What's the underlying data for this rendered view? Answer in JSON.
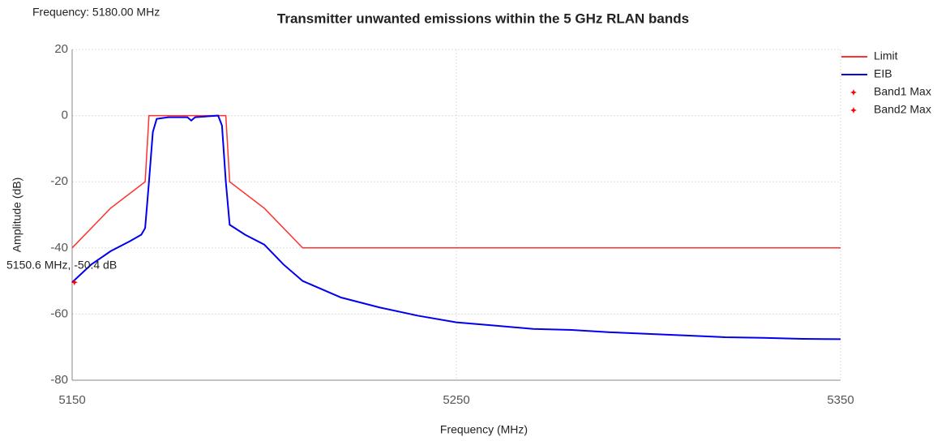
{
  "chart_data": {
    "type": "line",
    "title": "Transmitter unwanted emissions within the 5 GHz RLAN bands",
    "subtitle": "Frequency: 5180.00 MHz",
    "x_label": "Frequency (MHz)",
    "y_label": "Amplitude (dB)",
    "annotation": "5150.6 MHz, -50.4 dB",
    "xlim": [
      5150,
      5350
    ],
    "xticks": [
      5150,
      5250,
      5350
    ],
    "ylim": [
      -80,
      20
    ],
    "yticks": [
      20,
      0,
      -20,
      -40,
      -60,
      -80
    ],
    "grid": true,
    "legend": "right",
    "series": [
      {
        "name": "Limit",
        "color": "#ff3030",
        "type": "line",
        "x": [
          5150,
          5160,
          5169,
          5170,
          5190,
          5191,
          5200,
          5210,
          5350
        ],
        "values": [
          -40,
          -28,
          -20,
          0,
          0,
          -20,
          -28,
          -40,
          -40
        ]
      },
      {
        "name": "EIB",
        "color": "#0000ee",
        "type": "line",
        "x": [
          5150,
          5155,
          5160,
          5165,
          5168,
          5169,
          5170,
          5171,
          5172,
          5175,
          5180,
          5181,
          5182,
          5188,
          5189,
          5190,
          5191,
          5195,
          5200,
          5205,
          5210,
          5220,
          5230,
          5240,
          5250,
          5260,
          5270,
          5280,
          5290,
          5300,
          5310,
          5320,
          5330,
          5340,
          5350
        ],
        "values": [
          -50.4,
          -45,
          -41,
          -38,
          -36,
          -34,
          -20,
          -5,
          -1,
          -0.5,
          -0.5,
          -1.5,
          -0.5,
          0,
          -3,
          -20,
          -33,
          -36,
          -39,
          -45,
          -50,
          -55,
          -58,
          -60.5,
          -62.5,
          -63.5,
          -64.5,
          -64.8,
          -65.5,
          -66,
          -66.5,
          -67,
          -67.2,
          -67.5,
          -67.6
        ]
      },
      {
        "name": "Band1 Max",
        "color": "#ff0000",
        "type": "scatter",
        "x": [
          5150.6
        ],
        "values": [
          -50.4
        ]
      },
      {
        "name": "Band2 Max",
        "color": "#ff0000",
        "type": "scatter",
        "x": [],
        "values": []
      }
    ]
  }
}
